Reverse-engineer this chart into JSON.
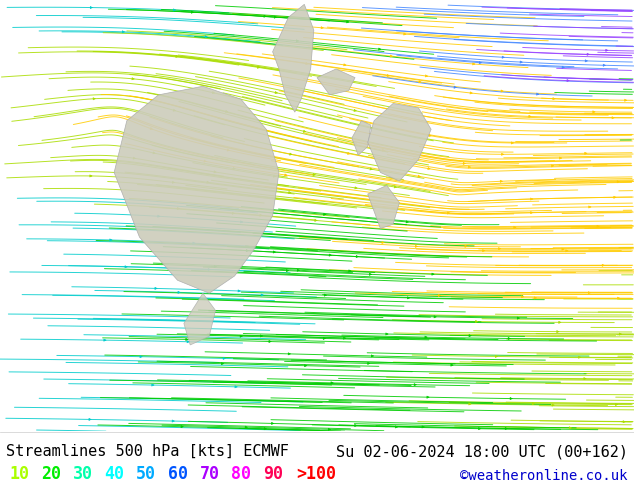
{
  "title_left": "Streamlines 500 hPa [kts] ECMWF",
  "title_right": "Su 02-06-2024 18:00 UTC (00+162)",
  "watermark": "©weatheronline.co.uk",
  "legend_values": [
    "10",
    "20",
    "30",
    "40",
    "50",
    "60",
    "70",
    "80",
    "90",
    ">100"
  ],
  "legend_colors": [
    "#aaff00",
    "#00ee00",
    "#00ffaa",
    "#00ffff",
    "#00aaff",
    "#0055ff",
    "#aa00ff",
    "#ff00ff",
    "#ff0055",
    "#ff0000"
  ],
  "bg_color": "#ffffff",
  "title_fontsize": 11,
  "legend_fontsize": 12,
  "watermark_color": "#0000cc",
  "map_bg": "#f5f5f5",
  "figsize": [
    6.34,
    4.9
  ],
  "dpi": 100,
  "land_color": "#ccccbb",
  "slow_color": "#00cc00",
  "med_color": "#aadd00",
  "jet_color": "#ffcc00",
  "fast_color": "#ff8800",
  "cyan_color": "#00cccc",
  "blue_color": "#4488ff",
  "purple_color": "#9944ff"
}
